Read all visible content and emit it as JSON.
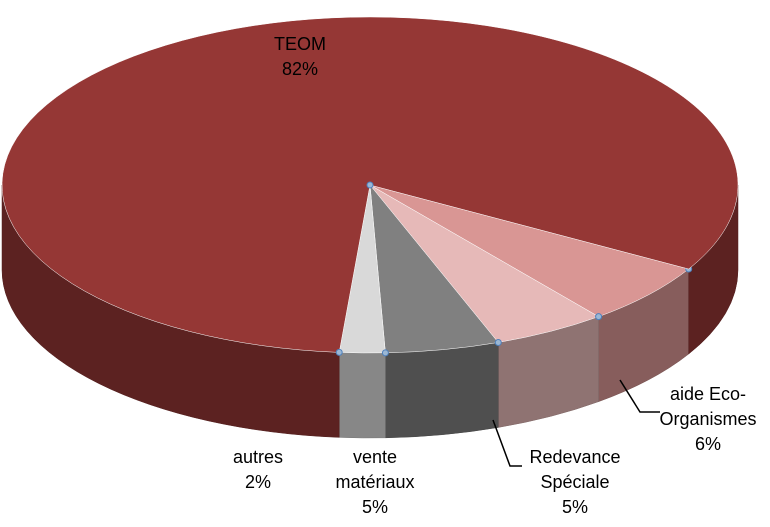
{
  "chart_data": {
    "type": "pie3d",
    "categories": [
      "aide Eco-Organismes",
      "Redevance Spéciale",
      "vente matériaux",
      "autres",
      "TEOM"
    ],
    "values": [
      6,
      5,
      5,
      2,
      82
    ],
    "value_labels": [
      "6%",
      "5%",
      "5%",
      "2%",
      "82%"
    ],
    "colors": [
      "#d99694",
      "#e6b9b8",
      "#808080",
      "#d9d9d9",
      "#953735"
    ]
  }
}
